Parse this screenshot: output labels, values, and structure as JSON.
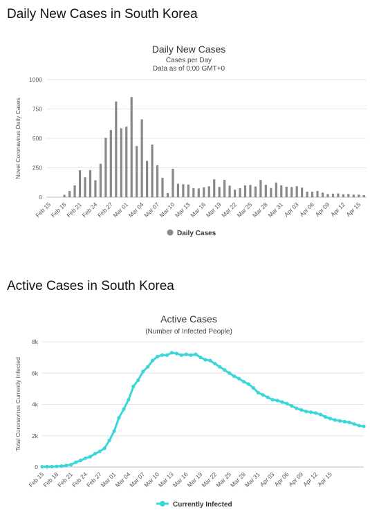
{
  "page": {
    "title1": "Daily New Cases in South Korea",
    "title2": "Active Cases in South Korea"
  },
  "chart_data": [
    {
      "type": "bar",
      "title": "Daily New Cases",
      "subtitle1": "Cases per Day",
      "subtitle2": "Data as of 0:00 GMT+0",
      "ylabel": "Novel Coronavirus Daily Cases",
      "ylim": [
        0,
        1000
      ],
      "yticks": [
        "0",
        "250",
        "500",
        "750",
        "1000"
      ],
      "ytick_values": [
        0,
        250,
        500,
        750,
        1000
      ],
      "xtick_labels": [
        "Feb 15",
        "Feb 18",
        "Feb 21",
        "Feb 24",
        "Feb 27",
        "Mar 01",
        "Mar 04",
        "Mar 07",
        "Mar 10",
        "Mar 13",
        "Mar 16",
        "Mar 19",
        "Mar 22",
        "Mar 25",
        "Mar 28",
        "Mar 31",
        "Apr 03",
        "Apr 06",
        "Apr 09",
        "Apr 12",
        "Apr 15"
      ],
      "legend": "Daily Cases",
      "color": "#888888",
      "values": [
        0,
        0,
        0,
        20,
        53,
        100,
        229,
        169,
        231,
        144,
        284,
        505,
        571,
        813,
        586,
        600,
        851,
        435,
        662,
        309,
        448,
        272,
        165,
        35,
        242,
        114,
        110,
        107,
        76,
        74,
        84,
        93,
        152,
        87,
        147,
        98,
        64,
        76,
        100,
        104,
        91,
        146,
        105,
        78,
        125,
        101,
        89,
        86,
        94,
        81,
        47,
        47,
        53,
        39,
        27,
        30,
        32,
        25,
        27,
        22,
        22,
        18
      ]
    },
    {
      "type": "line",
      "title": "Active Cases",
      "subtitle": "(Number of Infected People)",
      "ylabel": "Total Coronavirus Currently Infected",
      "ylim": [
        0,
        8000
      ],
      "yticks": [
        "0",
        "2k",
        "4k",
        "6k",
        "8k"
      ],
      "ytick_values": [
        0,
        2000,
        4000,
        6000,
        8000
      ],
      "xtick_labels": [
        "Feb 15",
        "Feb 18",
        "Feb 21",
        "Feb 24",
        "Feb 27",
        "Mar 01",
        "Mar 04",
        "Mar 07",
        "Mar 10",
        "Mar 13",
        "Mar 16",
        "Mar 19",
        "Mar 22",
        "Mar 25",
        "Mar 28",
        "Mar 31",
        "Apr 03",
        "Apr 06",
        "Apr 09",
        "Apr 12",
        "Apr 15"
      ],
      "legend": "Currently Infected",
      "color": "#3ad6d8",
      "values": [
        20,
        22,
        26,
        40,
        60,
        100,
        150,
        300,
        420,
        560,
        660,
        850,
        1000,
        1200,
        1700,
        2300,
        3150,
        3700,
        4300,
        5150,
        5550,
        6100,
        6400,
        6800,
        7050,
        7150,
        7150,
        7300,
        7250,
        7150,
        7200,
        7150,
        7200,
        7000,
        6850,
        6800,
        6600,
        6400,
        6200,
        6000,
        5800,
        5650,
        5450,
        5300,
        5050,
        4750,
        4600,
        4450,
        4300,
        4250,
        4150,
        4050,
        3900,
        3750,
        3650,
        3550,
        3500,
        3450,
        3350,
        3200,
        3100,
        3000,
        2950,
        2900,
        2850,
        2750,
        2650,
        2600
      ]
    }
  ]
}
